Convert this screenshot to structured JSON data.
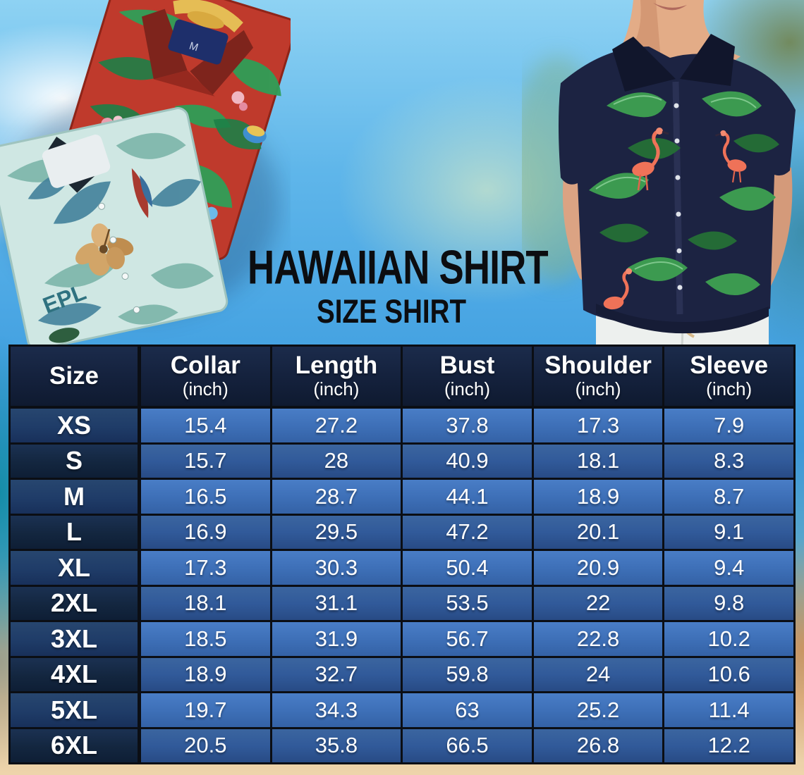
{
  "page": {
    "title": "HAWAIIAN SHIRT",
    "subtitle": "SIZE SHIRT"
  },
  "hero": {
    "left_photo": {
      "description": "two folded hawaiian shirts, red tropical print and teal hibiscus print",
      "red_shirt_tag_label": "M",
      "teal_shirt_print_text": "EPL"
    },
    "right_photo": {
      "description": "man wearing navy flamingo-and-monstera hawaiian shirt with white pants"
    }
  },
  "chart_data": {
    "type": "table",
    "title": "HAWAIIAN SHIRT",
    "subtitle": "SIZE SHIRT",
    "unit": "inch",
    "columns": [
      {
        "label": "Size",
        "sub": ""
      },
      {
        "label": "Collar",
        "sub": "(inch)"
      },
      {
        "label": "Length",
        "sub": "(inch)"
      },
      {
        "label": "Bust",
        "sub": "(inch)"
      },
      {
        "label": "Shoulder",
        "sub": "(inch)"
      },
      {
        "label": "Sleeve",
        "sub": "(inch)"
      }
    ],
    "value_keys": [
      "collar",
      "length",
      "bust",
      "shoulder",
      "sleeve"
    ],
    "rows": [
      {
        "size": "XS",
        "collar": 15.4,
        "length": 27.2,
        "bust": 37.8,
        "shoulder": 17.3,
        "sleeve": 7.9
      },
      {
        "size": "S",
        "collar": 15.7,
        "length": 28,
        "bust": 40.9,
        "shoulder": 18.1,
        "sleeve": 8.3
      },
      {
        "size": "M",
        "collar": 16.5,
        "length": 28.7,
        "bust": 44.1,
        "shoulder": 18.9,
        "sleeve": 8.7
      },
      {
        "size": "L",
        "collar": 16.9,
        "length": 29.5,
        "bust": 47.2,
        "shoulder": 20.1,
        "sleeve": 9.1
      },
      {
        "size": "XL",
        "collar": 17.3,
        "length": 30.3,
        "bust": 50.4,
        "shoulder": 20.9,
        "sleeve": 9.4
      },
      {
        "size": "2XL",
        "collar": 18.1,
        "length": 31.1,
        "bust": 53.5,
        "shoulder": 22,
        "sleeve": 9.8
      },
      {
        "size": "3XL",
        "collar": 18.5,
        "length": 31.9,
        "bust": 56.7,
        "shoulder": 22.8,
        "sleeve": 10.2
      },
      {
        "size": "4XL",
        "collar": 18.9,
        "length": 32.7,
        "bust": 59.8,
        "shoulder": 24,
        "sleeve": 10.6
      },
      {
        "size": "5XL",
        "collar": 19.7,
        "length": 34.3,
        "bust": 63,
        "shoulder": 25.2,
        "sleeve": 11.4
      },
      {
        "size": "6XL",
        "collar": 20.5,
        "length": 35.8,
        "bust": 66.5,
        "shoulder": 26.8,
        "sleeve": 12.2
      }
    ]
  },
  "colors": {
    "header_bg": "#14213c",
    "row_odd_label_bg": "#1f3c68",
    "row_odd_value_bg": "#3e70b8",
    "row_even_label_bg": "#13263f",
    "row_even_value_bg": "#315a9a",
    "grid_border": "#0b0e14",
    "table_text": "#ffffff",
    "title_text": "#0c0d10",
    "sky": "#5fb6ea",
    "sand": "#eed4ab"
  }
}
